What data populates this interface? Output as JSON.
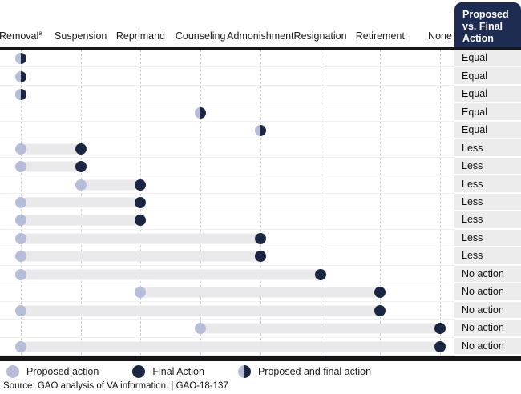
{
  "chart_data": {
    "type": "scatter",
    "variant": "dumbbell-dot-plot",
    "result_header": [
      "Proposed",
      "vs. Final",
      "Action"
    ],
    "columns": [
      {
        "label": "Removal",
        "footnote": "a"
      },
      {
        "label": "Suspension"
      },
      {
        "label": "Reprimand"
      },
      {
        "label": "Counseling"
      },
      {
        "label": "Admonishment"
      },
      {
        "label": "Resignation"
      },
      {
        "label": "Retirement"
      },
      {
        "label": "None"
      }
    ],
    "rows": [
      {
        "proposed": "Removal",
        "final": "Removal",
        "result": "Equal"
      },
      {
        "proposed": "Removal",
        "final": "Removal",
        "result": "Equal"
      },
      {
        "proposed": "Removal",
        "final": "Removal",
        "result": "Equal"
      },
      {
        "proposed": "Counseling",
        "final": "Counseling",
        "result": "Equal"
      },
      {
        "proposed": "Admonishment",
        "final": "Admonishment",
        "result": "Equal"
      },
      {
        "proposed": "Removal",
        "final": "Suspension",
        "result": "Less"
      },
      {
        "proposed": "Removal",
        "final": "Suspension",
        "result": "Less"
      },
      {
        "proposed": "Suspension",
        "final": "Reprimand",
        "result": "Less"
      },
      {
        "proposed": "Removal",
        "final": "Reprimand",
        "result": "Less"
      },
      {
        "proposed": "Removal",
        "final": "Reprimand",
        "result": "Less"
      },
      {
        "proposed": "Removal",
        "final": "Admonishment",
        "result": "Less"
      },
      {
        "proposed": "Removal",
        "final": "Admonishment",
        "result": "Less"
      },
      {
        "proposed": "Removal",
        "final": "Resignation",
        "result": "No action"
      },
      {
        "proposed": "Reprimand",
        "final": "Retirement",
        "result": "No action"
      },
      {
        "proposed": "Removal",
        "final": "Retirement",
        "result": "No action"
      },
      {
        "proposed": "Counseling",
        "final": "None",
        "result": "No action"
      },
      {
        "proposed": "Removal",
        "final": "None",
        "result": "No action"
      }
    ],
    "legend": [
      {
        "key": "proposed",
        "label": "Proposed action"
      },
      {
        "key": "final",
        "label": "Final Action"
      },
      {
        "key": "both",
        "label": "Proposed and final action"
      }
    ],
    "legend_position": "bottom",
    "grid": "vertical-dashed"
  },
  "colors": {
    "proposed": "#b6bdd9",
    "final": "#1b2642",
    "header_box": "#1e2c52",
    "connector_bar": "#e9e9eb",
    "result_cell": "#ececec",
    "gridline": "#c9c9c9"
  },
  "source": "Source: GAO analysis of VA information.  |  GAO-18-137"
}
